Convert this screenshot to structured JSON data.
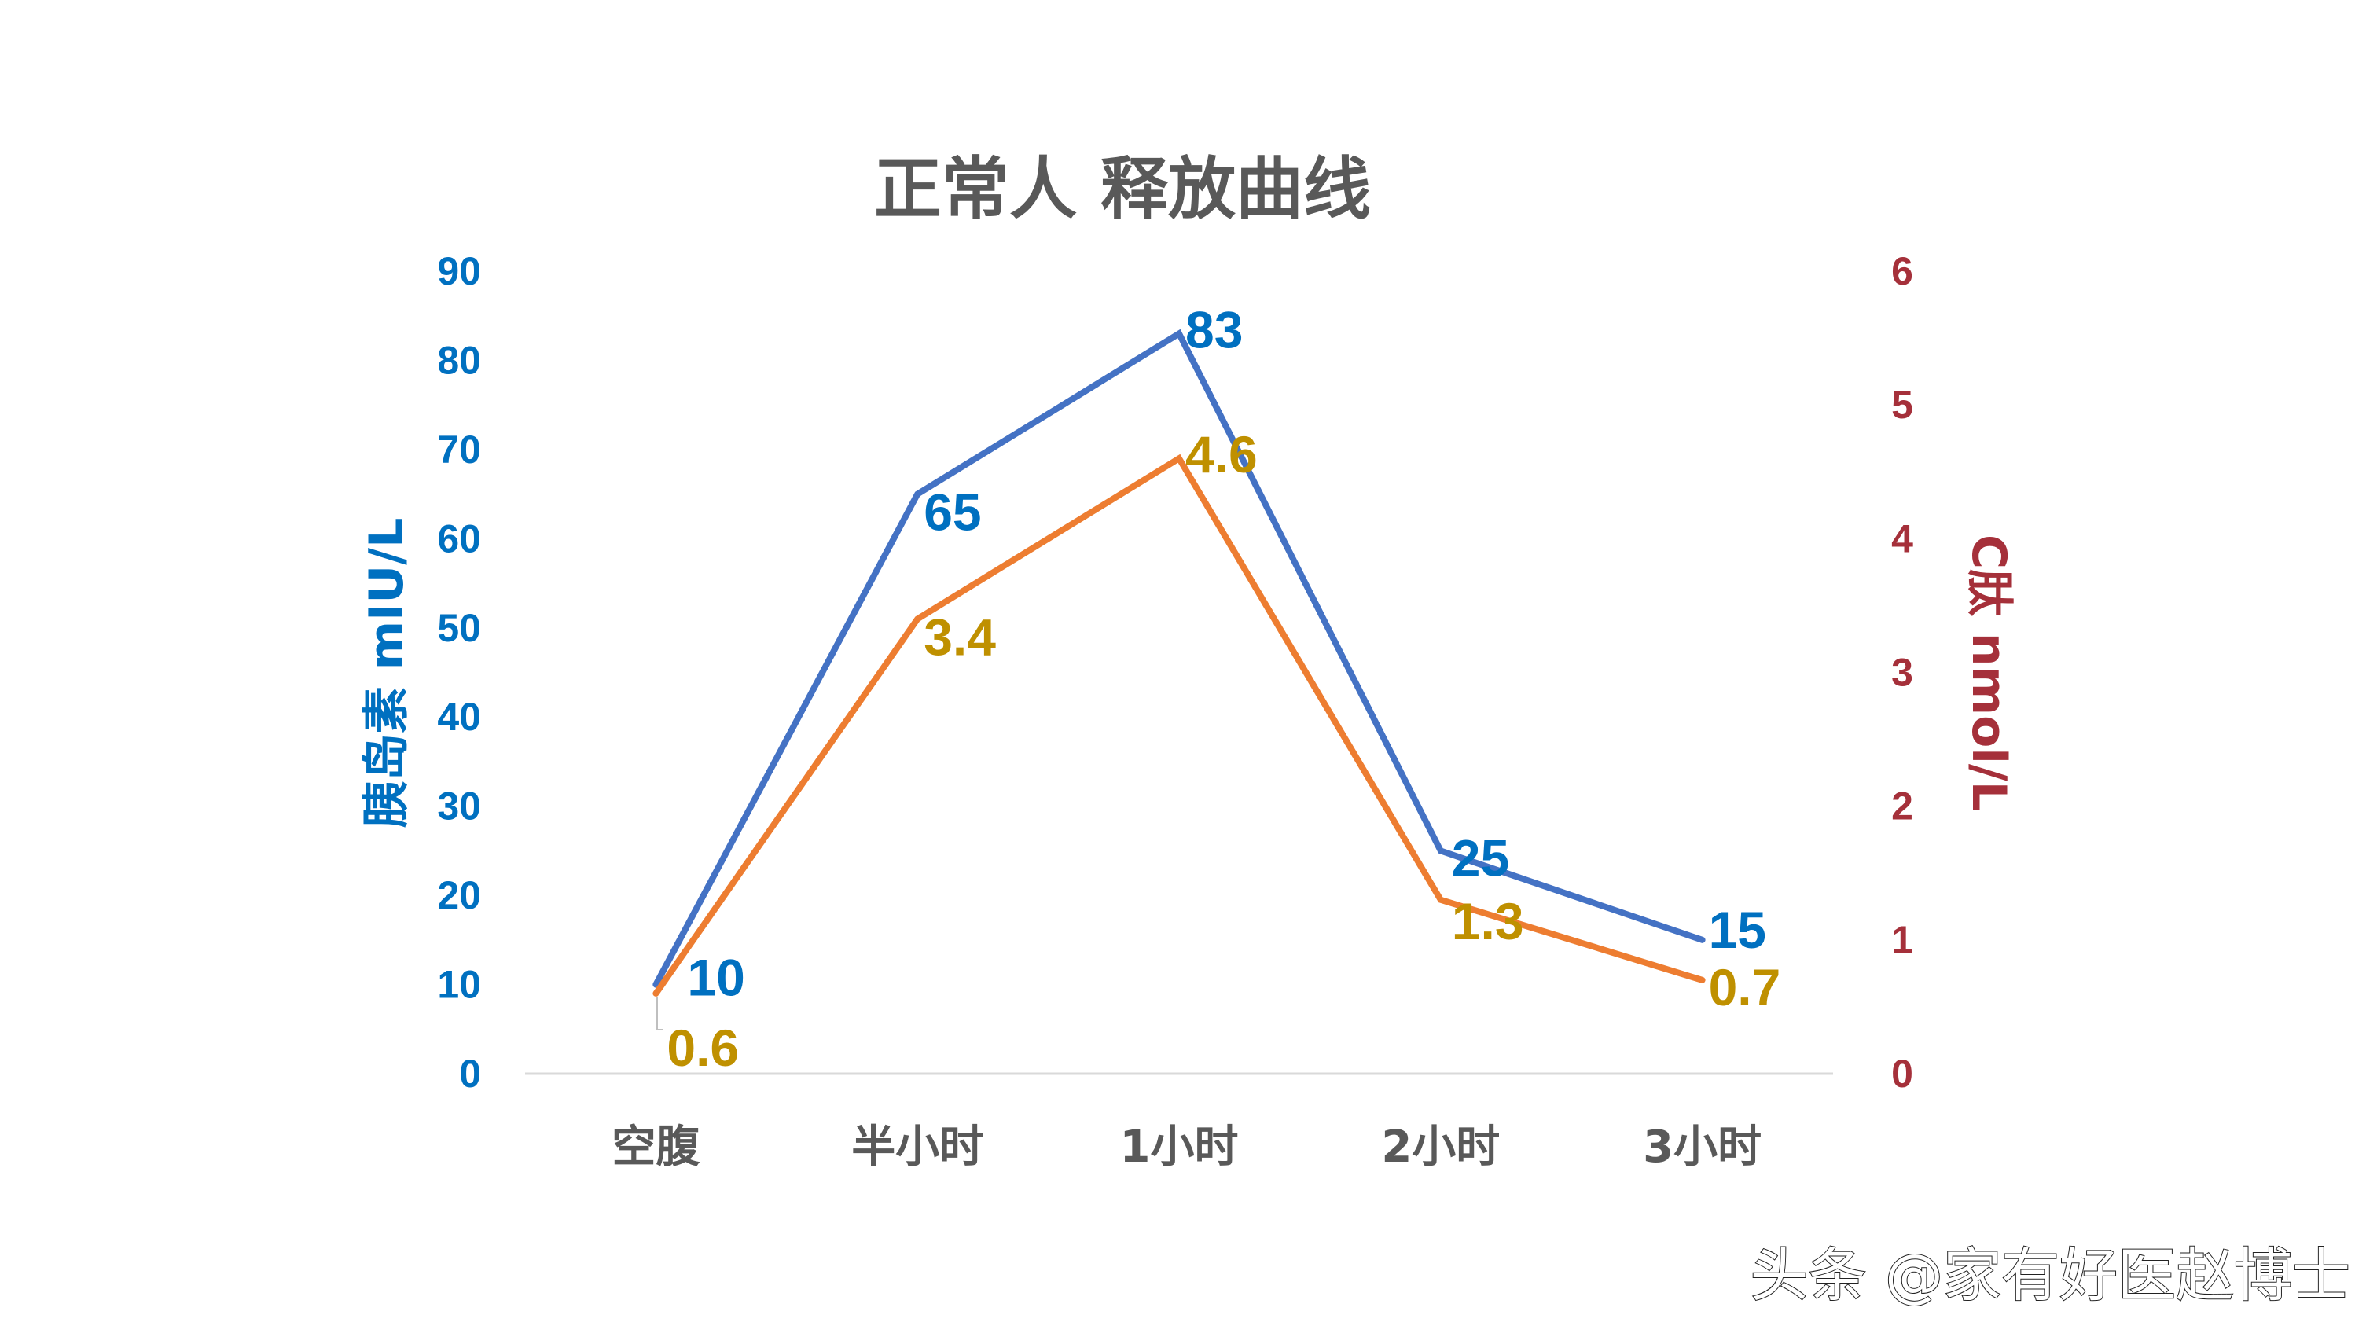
{
  "chart_data": {
    "type": "line",
    "title": "正常人 释放曲线",
    "categories": [
      "空腹",
      "半小时",
      "1小时",
      "2小时",
      "3小时"
    ],
    "series": [
      {
        "name": "胰岛素",
        "axis": "left",
        "unit": "mIU/L",
        "color": "#4472C4",
        "label_color": "#0070C0",
        "values": [
          10,
          65,
          83,
          25,
          15
        ]
      },
      {
        "name": "C肽",
        "axis": "right",
        "unit": "nmol/L",
        "color": "#ED7D31",
        "label_color": "#BF9000",
        "values": [
          0.6,
          3.4,
          4.6,
          1.3,
          0.7
        ]
      }
    ],
    "ylabel_left": "胰岛素 mIU/L",
    "ylabel_right": "C肽 nmol/L",
    "ylim_left": [
      0,
      90
    ],
    "ylim_right": [
      0,
      6
    ],
    "yticks_left": [
      "0",
      "10",
      "20",
      "30",
      "40",
      "50",
      "60",
      "70",
      "80",
      "90"
    ],
    "yticks_right": [
      "0",
      "1",
      "2",
      "3",
      "4",
      "5",
      "6"
    ],
    "grid": false,
    "legend": "none",
    "data_labels": true
  },
  "labels": {
    "insulin": [
      "10",
      "65",
      "83",
      "25",
      "15"
    ],
    "cpeptide": [
      "0.6",
      "3.4",
      "4.6",
      "1.3",
      "0.7"
    ]
  },
  "watermark": "头条 @家有好医赵博士"
}
